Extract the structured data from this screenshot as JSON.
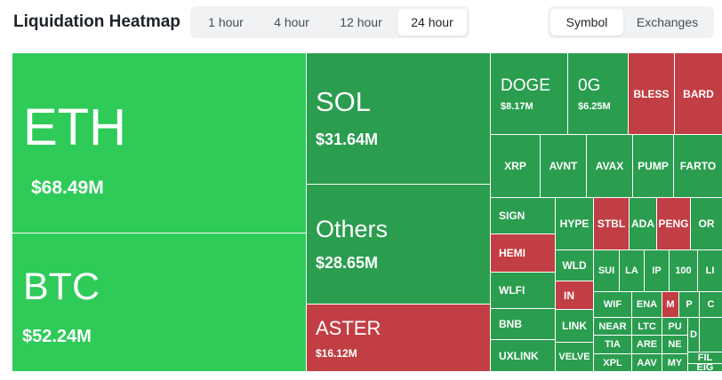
{
  "header": {
    "title": "Liquidation Heatmap",
    "timeframes": [
      "1 hour",
      "4 hour",
      "12 hour",
      "24 hour"
    ],
    "active_timeframe": "24 hour",
    "views": [
      "Symbol",
      "Exchanges"
    ],
    "active_view": "Symbol"
  },
  "colors": {
    "long_bright": "#2ecb58",
    "long": "#2a9d4f",
    "short": "#c13e44"
  },
  "tiles": {
    "eth": {
      "symbol": "ETH",
      "value": "$68.49M"
    },
    "btc": {
      "symbol": "BTC",
      "value": "$52.24M"
    },
    "sol": {
      "symbol": "SOL",
      "value": "$31.64M"
    },
    "others": {
      "symbol": "Others",
      "value": "$28.65M"
    },
    "aster": {
      "symbol": "ASTER",
      "value": "$16.12M"
    },
    "doge": {
      "symbol": "DOGE",
      "value": "$8.17M"
    },
    "og": {
      "symbol": "0G",
      "value": "$6.25M"
    },
    "bless": {
      "symbol": "BLESS"
    },
    "bard": {
      "symbol": "BARD"
    },
    "xrp": {
      "symbol": "XRP"
    },
    "avnt": {
      "symbol": "AVNT"
    },
    "avax": {
      "symbol": "AVAX"
    },
    "pump": {
      "symbol": "PUMP"
    },
    "farto": {
      "symbol": "FARTO"
    },
    "sign": {
      "symbol": "SIGN"
    },
    "hemi": {
      "symbol": "HEMI"
    },
    "wlfi": {
      "symbol": "WLFI"
    },
    "bnb": {
      "symbol": "BNB"
    },
    "uxlink": {
      "symbol": "UXLINK"
    },
    "hype": {
      "symbol": "HYPE"
    },
    "stbl": {
      "symbol": "STBL"
    },
    "ada": {
      "symbol": "ADA"
    },
    "peng": {
      "symbol": "PENG"
    },
    "or": {
      "symbol": "OR"
    },
    "wld": {
      "symbol": "WLD"
    },
    "in": {
      "symbol": "IN"
    },
    "link": {
      "symbol": "LINK"
    },
    "velve": {
      "symbol": "VELVE"
    },
    "sui": {
      "symbol": "SUI"
    },
    "la": {
      "symbol": "LA"
    },
    "ip": {
      "symbol": "IP"
    },
    "t100": {
      "symbol": "100"
    },
    "li": {
      "symbol": "LI"
    },
    "wif": {
      "symbol": "WIF"
    },
    "ena": {
      "symbol": "ENA"
    },
    "m": {
      "symbol": "M"
    },
    "p": {
      "symbol": "P"
    },
    "ccol": {
      "symbol": "C"
    },
    "near": {
      "symbol": "NEAR"
    },
    "ltc": {
      "symbol": "LTC"
    },
    "pu": {
      "symbol": "PU"
    },
    "d": {
      "symbol": "D"
    },
    "tia": {
      "symbol": "TIA"
    },
    "are": {
      "symbol": "ARE"
    },
    "ne": {
      "symbol": "NE"
    },
    "xpl": {
      "symbol": "XPL"
    },
    "aav": {
      "symbol": "AAV"
    },
    "my": {
      "symbol": "MY"
    },
    "fil": {
      "symbol": "FIL"
    },
    "eig": {
      "symbol": "EIG"
    }
  }
}
